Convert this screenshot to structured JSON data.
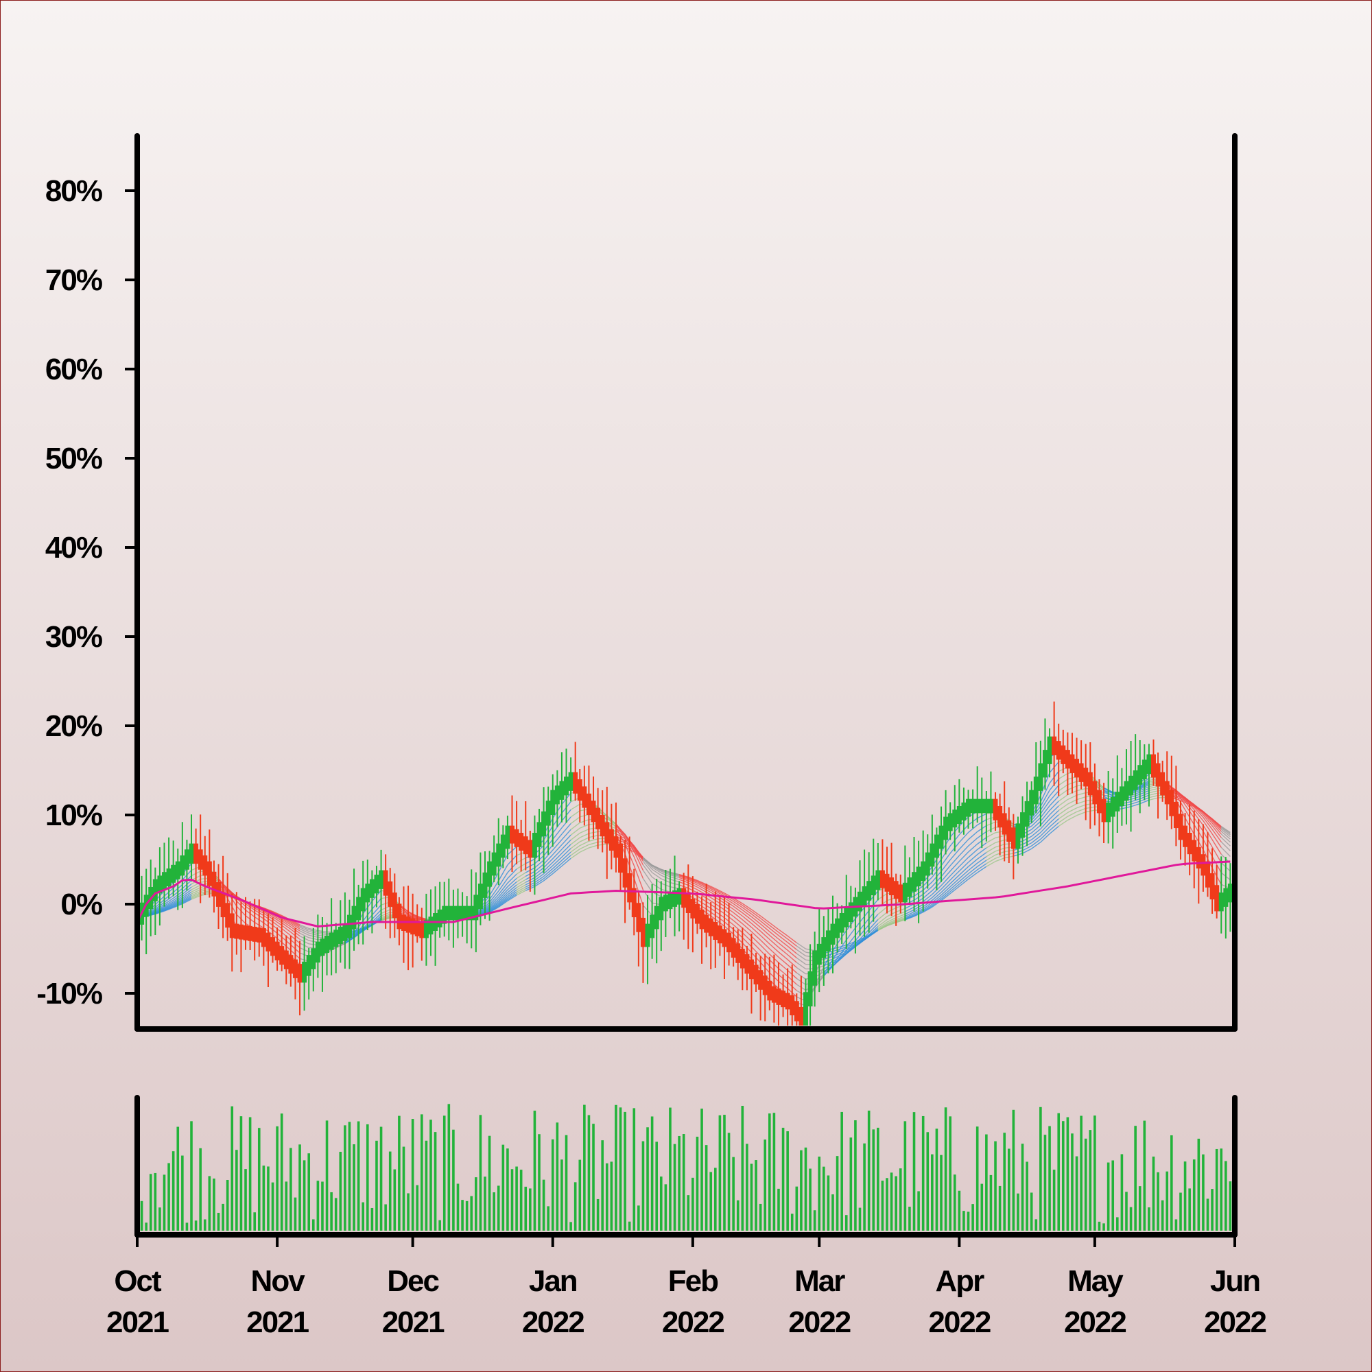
{
  "chart_data": {
    "type": "candlestick",
    "y_axis": {
      "ticks": [
        "-10%",
        "0%",
        "10%",
        "20%",
        "30%",
        "40%",
        "50%",
        "60%",
        "70%",
        "80%"
      ],
      "tick_values": [
        -10,
        0,
        10,
        20,
        30,
        40,
        50,
        60,
        70,
        80
      ],
      "ylim": [
        -14,
        86
      ]
    },
    "x_axis": {
      "ticks": [
        {
          "month": "Oct",
          "year": "2021",
          "date": "2021-10-01"
        },
        {
          "month": "Nov",
          "year": "2021",
          "date": "2021-11-01"
        },
        {
          "month": "Dec",
          "year": "2021",
          "date": "2021-12-01"
        },
        {
          "month": "Jan",
          "year": "2022",
          "date": "2022-01-01"
        },
        {
          "month": "Feb",
          "year": "2022",
          "date": "2022-02-01"
        },
        {
          "month": "Mar",
          "year": "2022",
          "date": "2022-03-01"
        },
        {
          "month": "Apr",
          "year": "2022",
          "date": "2022-04-01"
        },
        {
          "month": "May",
          "year": "2022",
          "date": "2022-05-01"
        },
        {
          "month": "Jun",
          "year": "2022",
          "date": "2022-06-01"
        }
      ],
      "xlim": [
        "2021-10-01",
        "2022-06-01"
      ]
    },
    "price_path": [
      [
        "2021-10-01",
        -1.5
      ],
      [
        "2021-10-05",
        2
      ],
      [
        "2021-10-10",
        4
      ],
      [
        "2021-10-13",
        6
      ],
      [
        "2021-10-16",
        4
      ],
      [
        "2021-10-22",
        -3
      ],
      [
        "2021-10-28",
        -3.5
      ],
      [
        "2021-11-02",
        -6
      ],
      [
        "2021-11-06",
        -8
      ],
      [
        "2021-11-10",
        -5
      ],
      [
        "2021-11-16",
        -3
      ],
      [
        "2021-11-20",
        1
      ],
      [
        "2021-11-24",
        3
      ],
      [
        "2021-11-28",
        -2
      ],
      [
        "2021-12-03",
        -3
      ],
      [
        "2021-12-08",
        -1
      ],
      [
        "2021-12-14",
        -1
      ],
      [
        "2021-12-18",
        4
      ],
      [
        "2021-12-22",
        8
      ],
      [
        "2021-12-27",
        6
      ],
      [
        "2022-01-01",
        12
      ],
      [
        "2022-01-05",
        14
      ],
      [
        "2022-01-10",
        10
      ],
      [
        "2022-01-15",
        6
      ],
      [
        "2022-01-18",
        1
      ],
      [
        "2022-01-21",
        -4
      ],
      [
        "2022-01-25",
        0
      ],
      [
        "2022-01-29",
        1
      ],
      [
        "2022-02-03",
        -2
      ],
      [
        "2022-02-08",
        -4
      ],
      [
        "2022-02-13",
        -7
      ],
      [
        "2022-02-18",
        -10
      ],
      [
        "2022-02-22",
        -11
      ],
      [
        "2022-02-25",
        -13
      ],
      [
        "2022-02-28",
        -6
      ],
      [
        "2022-03-04",
        -3
      ],
      [
        "2022-03-09",
        0
      ],
      [
        "2022-03-14",
        3
      ],
      [
        "2022-03-19",
        1
      ],
      [
        "2022-03-24",
        4
      ],
      [
        "2022-03-29",
        9
      ],
      [
        "2022-04-03",
        11
      ],
      [
        "2022-04-08",
        11
      ],
      [
        "2022-04-13",
        7
      ],
      [
        "2022-04-17",
        12
      ],
      [
        "2022-04-21",
        18
      ],
      [
        "2022-04-25",
        16
      ],
      [
        "2022-04-29",
        14
      ],
      [
        "2022-05-03",
        10
      ],
      [
        "2022-05-08",
        13
      ],
      [
        "2022-05-13",
        16
      ],
      [
        "2022-05-17",
        12
      ],
      [
        "2022-05-20",
        8
      ],
      [
        "2022-05-25",
        4
      ],
      [
        "2022-05-28",
        0
      ],
      [
        "2022-06-01",
        2
      ]
    ],
    "ribbon_colors": {
      "bull_candle": "#22b33a",
      "bear_candle": "#f03a1a",
      "ma_blue": "#2f8fd8",
      "ma_green": "#9cc78a",
      "ma_red": "#f04a4a",
      "ma_grey": "#9b9b9b",
      "long_ma": "#e0189a",
      "volume": "#22b33a"
    },
    "long_ma_path": [
      [
        "2021-10-01",
        -2
      ],
      [
        "2021-10-04",
        1
      ],
      [
        "2021-10-09",
        2
      ],
      [
        "2021-10-12",
        3
      ],
      [
        "2021-10-16",
        2
      ],
      [
        "2021-10-24",
        0.5
      ],
      [
        "2021-11-02",
        -1.5
      ],
      [
        "2021-11-10",
        -2.5
      ],
      [
        "2021-11-22",
        -2
      ],
      [
        "2021-12-10",
        -2
      ],
      [
        "2021-12-22",
        -0.5
      ],
      [
        "2022-01-05",
        1.2
      ],
      [
        "2022-01-15",
        1.5
      ],
      [
        "2022-02-01",
        1.2
      ],
      [
        "2022-02-15",
        0.5
      ],
      [
        "2022-03-01",
        -0.5
      ],
      [
        "2022-03-20",
        0
      ],
      [
        "2022-04-10",
        0.8
      ],
      [
        "2022-04-25",
        2
      ],
      [
        "2022-05-10",
        3.5
      ],
      [
        "2022-05-20",
        4.5
      ],
      [
        "2022-06-01",
        4.8
      ]
    ]
  }
}
